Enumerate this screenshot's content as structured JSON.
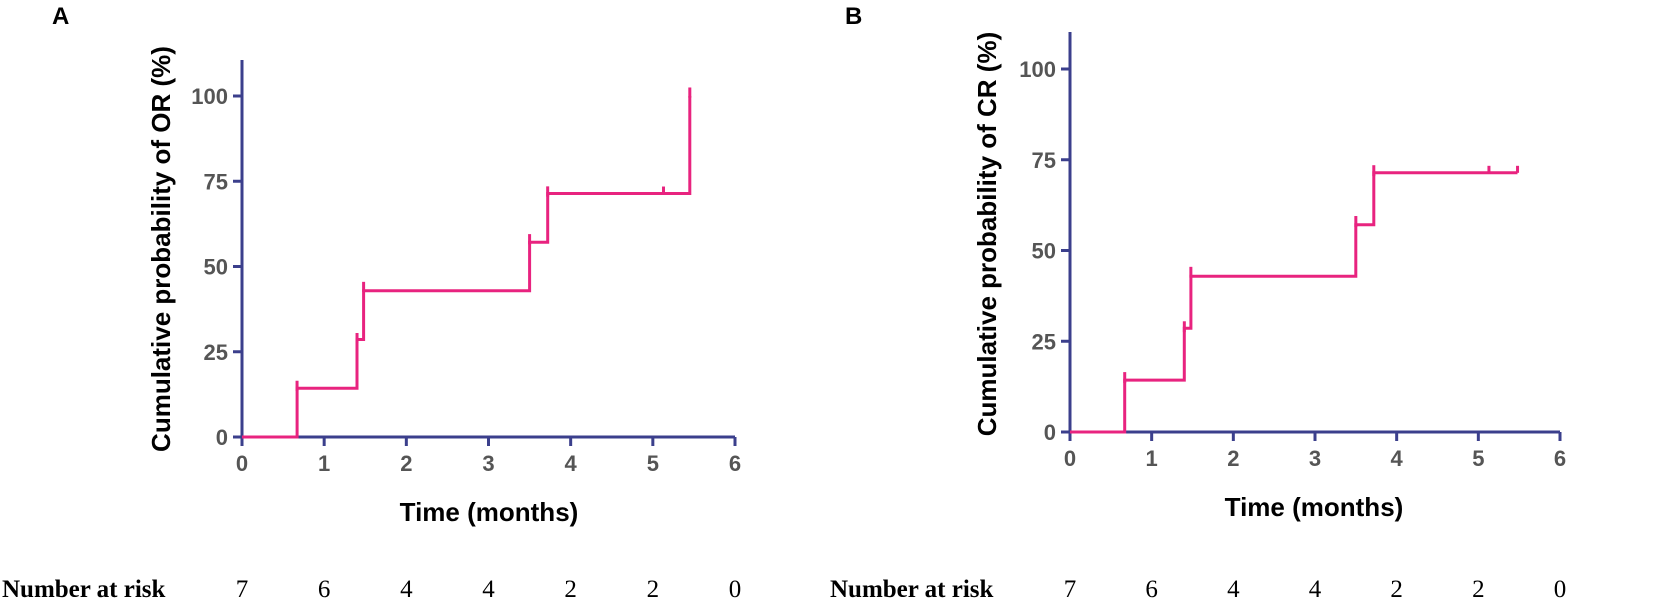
{
  "chart_data": [
    {
      "panel": "A",
      "type": "line",
      "subtype": "kaplan-meier-cumulative-incidence",
      "title": "",
      "xlabel": "Time (months)",
      "ylabel": "Cumulative probability of OR (%)",
      "xlim": [
        0,
        6
      ],
      "ylim": [
        0,
        110
      ],
      "xticks": [
        "0",
        "1",
        "2",
        "3",
        "4",
        "5",
        "6"
      ],
      "yticks": [
        "0",
        "25",
        "50",
        "75",
        "100"
      ],
      "xtick_values": [
        0,
        1,
        2,
        3,
        4,
        5,
        6
      ],
      "ytick_values": [
        0,
        25,
        50,
        75,
        100
      ],
      "series": [
        {
          "name": "OR",
          "color": "#e8237f",
          "steps": [
            [
              0,
              0
            ],
            [
              0.67,
              0
            ],
            [
              0.67,
              14.3
            ],
            [
              1.4,
              14.3
            ],
            [
              1.4,
              28.6
            ],
            [
              1.48,
              28.6
            ],
            [
              1.48,
              42.9
            ],
            [
              3.5,
              42.9
            ],
            [
              3.5,
              57.1
            ],
            [
              3.72,
              57.1
            ],
            [
              3.72,
              71.4
            ],
            [
              5.45,
              71.4
            ],
            [
              5.45,
              100
            ]
          ],
          "jumps_extended": [
            [
              0.67,
              16.5
            ],
            [
              1.4,
              30.5
            ],
            [
              1.48,
              45.5
            ],
            [
              3.5,
              59.5
            ],
            [
              3.72,
              73.5
            ],
            [
              5.45,
              102.5
            ]
          ],
          "censor_marks": [
            [
              5.13,
              71.4
            ]
          ]
        }
      ],
      "risk_table": {
        "label": "Number at risk",
        "times": [
          0,
          1,
          2,
          3,
          4,
          5,
          6
        ],
        "values": [
          "7",
          "6",
          "4",
          "4",
          "2",
          "2",
          "0"
        ]
      }
    },
    {
      "panel": "B",
      "type": "line",
      "subtype": "kaplan-meier-cumulative-incidence",
      "title": "",
      "xlabel": "Time (months)",
      "ylabel": "Cumulative probability of CR (%)",
      "xlim": [
        0,
        6
      ],
      "ylim": [
        0,
        110
      ],
      "xticks": [
        "0",
        "1",
        "2",
        "3",
        "4",
        "5",
        "6"
      ],
      "yticks": [
        "0",
        "25",
        "50",
        "75",
        "100"
      ],
      "xtick_values": [
        0,
        1,
        2,
        3,
        4,
        5,
        6
      ],
      "ytick_values": [
        0,
        25,
        50,
        75,
        100
      ],
      "series": [
        {
          "name": "CR",
          "color": "#e8237f",
          "steps": [
            [
              0,
              0
            ],
            [
              0.67,
              0
            ],
            [
              0.67,
              14.3
            ],
            [
              1.4,
              14.3
            ],
            [
              1.4,
              28.6
            ],
            [
              1.48,
              28.6
            ],
            [
              1.48,
              42.9
            ],
            [
              3.5,
              42.9
            ],
            [
              3.5,
              57.1
            ],
            [
              3.72,
              57.1
            ],
            [
              3.72,
              71.4
            ],
            [
              5.48,
              71.4
            ]
          ],
          "jumps_extended": [
            [
              0.67,
              16.5
            ],
            [
              1.4,
              30.5
            ],
            [
              1.48,
              45.5
            ],
            [
              3.5,
              59.5
            ],
            [
              3.72,
              73.5
            ]
          ],
          "censor_marks": [
            [
              5.13,
              71.4
            ],
            [
              5.48,
              71.4
            ]
          ]
        }
      ],
      "risk_table": {
        "label": "Number at risk",
        "times": [
          0,
          1,
          2,
          3,
          4,
          5,
          6
        ],
        "values": [
          "7",
          "6",
          "4",
          "4",
          "2",
          "2",
          "0"
        ]
      }
    }
  ],
  "colors": {
    "axis": "#3b3f8c",
    "curve": "#e8237f",
    "tick_text": "#555555"
  }
}
